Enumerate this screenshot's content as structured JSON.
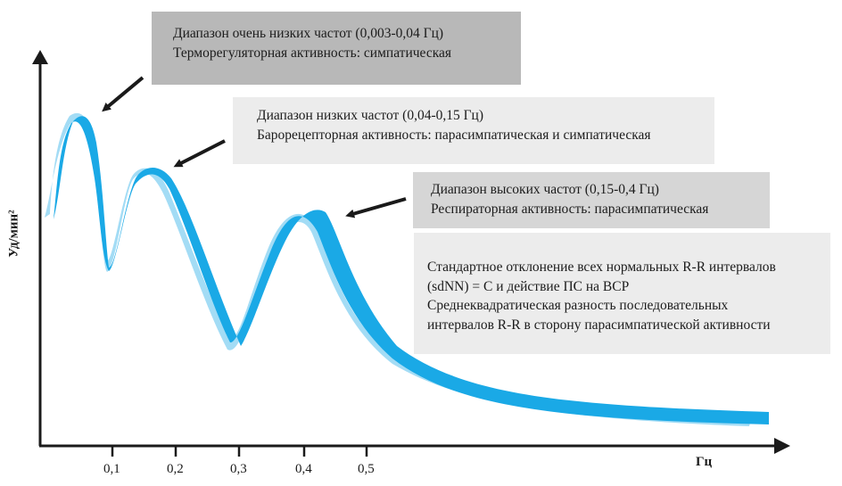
{
  "colors": {
    "ribbon_front": "#1aa9e6",
    "ribbon_back": "#a3dcf5",
    "axis": "#1a1a1a",
    "arrow": "#1a1a1a",
    "box_dark": "#b8b8b8",
    "box_mid": "#d6d6d6",
    "box_light": "#ececec"
  },
  "axes": {
    "y_label": "Уд/мин²",
    "x_label": "Гц",
    "x_ticks": [
      "0,1",
      "0,2",
      "0,3",
      "0,4",
      "0,5"
    ]
  },
  "boxes": {
    "vlf": {
      "line1": "Диапазон очень низких частот (0,003-0,04 Гц)",
      "line2": "Терморегуляторная активность: симпатическая"
    },
    "lf": {
      "line1": "Диапазон низких частот (0,04-0,15 Гц)",
      "line2": "Барорецепторная активность: парасимпатическая и симпатическая"
    },
    "hf": {
      "line1": "Диапазон высоких частот (0,15-0,4 Гц)",
      "line2": "Респираторная активность: парасимпатическая"
    },
    "sdnn": {
      "line1": "Стандартное отклонение всех нормальных R-R интервалов",
      "line2": "(sdNN) = C и действие ПС на ВСР",
      "line3": "Среднеквадратическая разность последовательных",
      "line4": "интервалов R-R в сторону парасимпатической активности"
    }
  }
}
